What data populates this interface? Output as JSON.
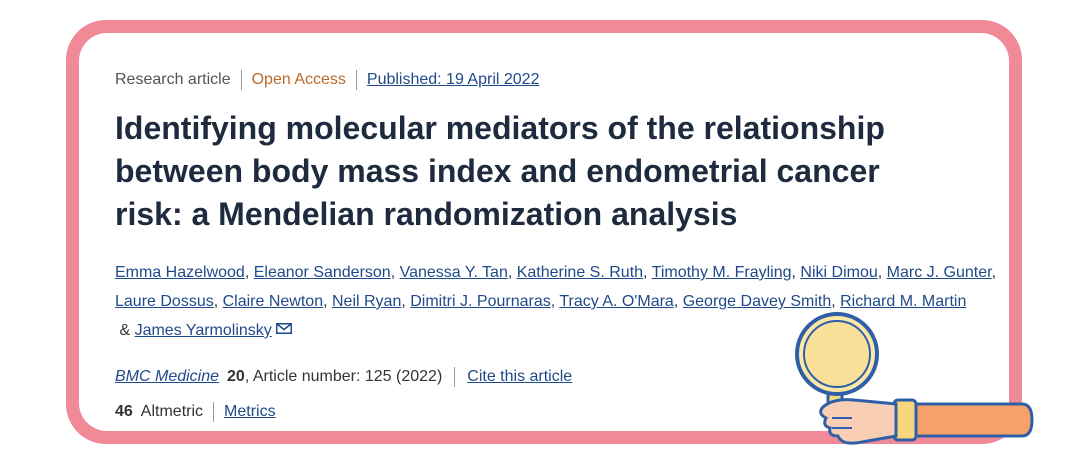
{
  "article": {
    "type": "Research article",
    "access": "Open Access",
    "published": "Published: 19 April 2022",
    "title": "Identifying molecular mediators of the relationship between body mass index and endometrial cancer risk: a Mendelian randomization analysis",
    "authors": [
      "Emma Hazelwood",
      "Eleanor Sanderson",
      "Vanessa Y. Tan",
      "Katherine S. Ruth",
      "Timothy M. Frayling",
      "Niki Dimou",
      "Marc J. Gunter",
      "Laure Dossus",
      "Claire Newton",
      "Neil Ryan",
      "Dimitri J. Pournaras",
      "Tracy A. O'Mara",
      "George Davey Smith",
      "Richard M. Martin",
      "James Yarmolinsky"
    ],
    "author_joiner": "&",
    "journal": "BMC Medicine",
    "volume": "20",
    "article_number": ", Article number: 125 (2022)",
    "cite": "Cite this article",
    "altmetric_count": "46",
    "altmetric_label": "Altmetric",
    "metrics": "Metrics"
  },
  "colors": {
    "frame": "#f08a97",
    "link": "#1f4a8a",
    "open_access": "#b96a2c",
    "title": "#1e2a3e"
  },
  "icons": [
    "mail-icon",
    "magnifying-glass-hand-icon"
  ]
}
